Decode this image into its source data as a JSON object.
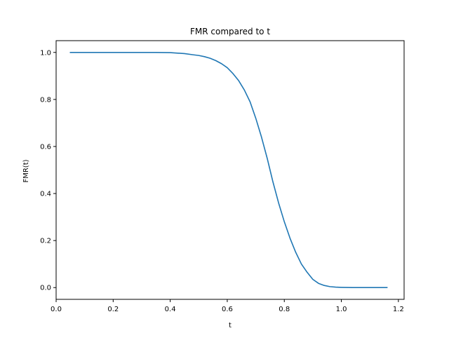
{
  "chart_data": {
    "type": "line",
    "title": "FMR compared to t",
    "xlabel": "t",
    "ylabel": "FMR(t)",
    "xlim": [
      0.0,
      1.22
    ],
    "ylim": [
      -0.05,
      1.05
    ],
    "xticks": [
      0.0,
      0.2,
      0.4,
      0.6,
      0.8,
      1.0,
      1.2
    ],
    "xtick_labels": [
      "0.0",
      "0.2",
      "0.4",
      "0.6",
      "0.8",
      "1.0",
      "1.2"
    ],
    "yticks": [
      0.0,
      0.2,
      0.4,
      0.6,
      0.8,
      1.0
    ],
    "ytick_labels": [
      "0.0",
      "0.2",
      "0.4",
      "0.6",
      "0.8",
      "1.0"
    ],
    "grid": false,
    "series": [
      {
        "color": "#1f77b4",
        "x": [
          0.05,
          0.1,
          0.15,
          0.2,
          0.25,
          0.3,
          0.35,
          0.4,
          0.45,
          0.48,
          0.5,
          0.52,
          0.54,
          0.56,
          0.58,
          0.6,
          0.62,
          0.64,
          0.66,
          0.68,
          0.7,
          0.72,
          0.74,
          0.76,
          0.78,
          0.8,
          0.82,
          0.84,
          0.86,
          0.88,
          0.9,
          0.92,
          0.94,
          0.96,
          0.98,
          1.0,
          1.02,
          1.04,
          1.06,
          1.1,
          1.16
        ],
        "y": [
          1.0,
          1.0,
          1.0,
          1.0,
          1.0,
          1.0,
          1.0,
          0.999,
          0.995,
          0.99,
          0.987,
          0.982,
          0.975,
          0.965,
          0.952,
          0.935,
          0.91,
          0.88,
          0.84,
          0.79,
          0.72,
          0.64,
          0.55,
          0.45,
          0.36,
          0.28,
          0.21,
          0.15,
          0.1,
          0.065,
          0.035,
          0.018,
          0.009,
          0.004,
          0.002,
          0.001,
          0.0005,
          0.0002,
          0.0001,
          0.0,
          0.0
        ]
      }
    ]
  }
}
